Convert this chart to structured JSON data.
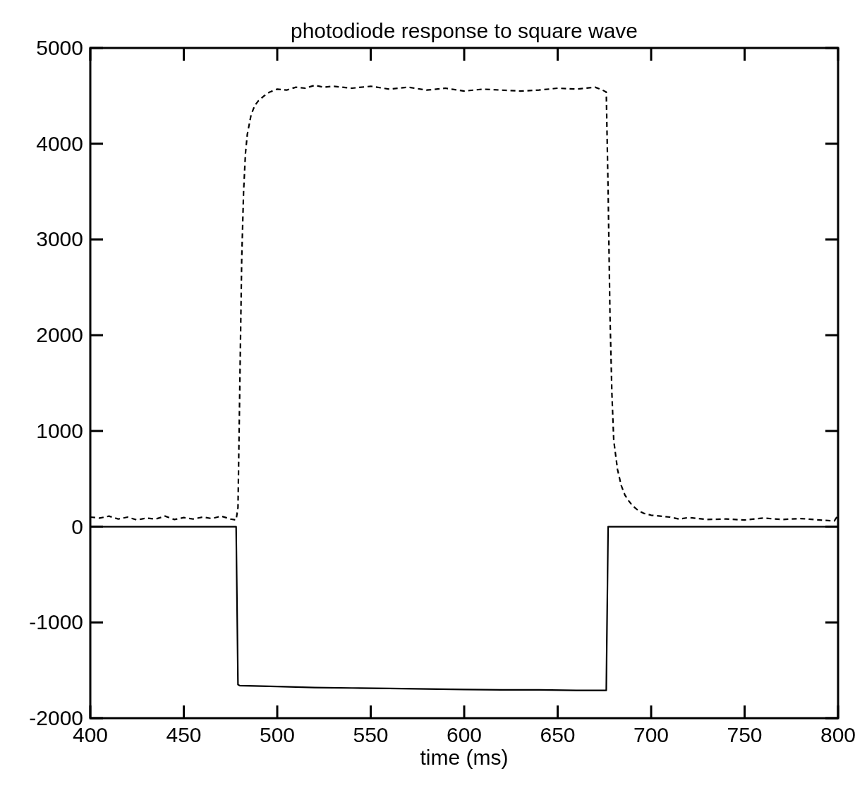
{
  "chart_data": {
    "type": "line",
    "title": "photodiode response to square wave",
    "xlabel": "time (ms)",
    "xlim": [
      400,
      800
    ],
    "xticks": [
      400,
      450,
      500,
      550,
      600,
      650,
      700,
      750,
      800
    ],
    "ylim": [
      -2000,
      5000
    ],
    "yticks": [
      -2000,
      -1000,
      0,
      1000,
      2000,
      3000,
      4000,
      5000
    ],
    "grid": false,
    "series": [
      {
        "color": "#000000",
        "line_style": "dashed",
        "x": [
          400,
          405,
          410,
          415,
          420,
          425,
          430,
          435,
          440,
          445,
          450,
          455,
          460,
          465,
          470,
          475,
          478,
          479,
          480,
          481,
          482,
          483,
          484,
          485,
          486,
          488,
          490,
          493,
          496,
          500,
          505,
          510,
          515,
          520,
          525,
          530,
          540,
          550,
          560,
          570,
          580,
          590,
          600,
          610,
          620,
          630,
          640,
          650,
          660,
          670,
          674,
          676,
          677,
          678,
          679,
          680,
          682,
          684,
          686,
          688,
          690,
          693,
          696,
          700,
          705,
          710,
          715,
          720,
          730,
          740,
          750,
          760,
          770,
          780,
          790,
          798,
          800
        ],
        "values": [
          100,
          90,
          110,
          80,
          100,
          70,
          90,
          80,
          110,
          75,
          95,
          80,
          100,
          85,
          110,
          80,
          70,
          200,
          1500,
          2800,
          3500,
          3900,
          4100,
          4200,
          4300,
          4400,
          4450,
          4500,
          4540,
          4570,
          4560,
          4590,
          4580,
          4610,
          4590,
          4600,
          4580,
          4600,
          4570,
          4590,
          4560,
          4580,
          4550,
          4570,
          4560,
          4550,
          4560,
          4580,
          4570,
          4590,
          4560,
          4540,
          3500,
          2200,
          1400,
          900,
          600,
          430,
          330,
          270,
          220,
          170,
          140,
          120,
          110,
          100,
          80,
          95,
          75,
          80,
          70,
          90,
          75,
          85,
          70,
          60,
          120
        ]
      },
      {
        "color": "#000000",
        "line_style": "solid",
        "x": [
          400,
          420,
          440,
          460,
          478,
          479,
          480,
          500,
          520,
          540,
          560,
          580,
          600,
          620,
          640,
          660,
          675,
          676,
          677,
          700,
          720,
          740,
          760,
          780,
          800
        ],
        "values": [
          0,
          0,
          0,
          0,
          0,
          -1650,
          -1660,
          -1670,
          -1680,
          -1685,
          -1690,
          -1695,
          -1700,
          -1705,
          -1705,
          -1710,
          -1710,
          -1710,
          0,
          0,
          0,
          0,
          0,
          0,
          0
        ]
      }
    ]
  }
}
